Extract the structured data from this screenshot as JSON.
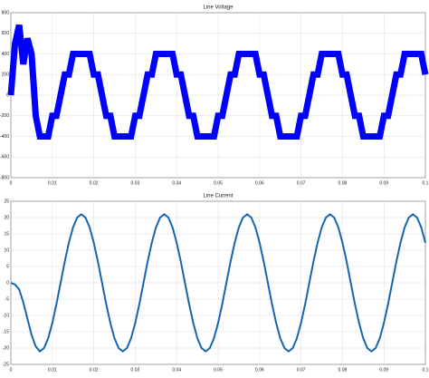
{
  "chart_data": [
    {
      "type": "line",
      "title": "Line Voltage",
      "x": [
        0,
        0.001,
        0.002,
        0.003,
        0.004,
        0.005,
        0.006,
        0.007,
        0.008,
        0.009,
        0.01,
        0.011,
        0.012,
        0.013,
        0.014,
        0.015,
        0.016,
        0.017,
        0.018,
        0.019,
        0.02,
        0.021,
        0.022,
        0.023,
        0.024,
        0.025,
        0.026,
        0.027,
        0.028,
        0.029,
        0.03,
        0.031,
        0.032,
        0.033,
        0.034,
        0.035,
        0.036,
        0.037,
        0.038,
        0.039,
        0.04,
        0.041,
        0.042,
        0.043,
        0.044,
        0.045,
        0.046,
        0.047,
        0.048,
        0.049,
        0.05,
        0.051,
        0.052,
        0.053,
        0.054,
        0.055,
        0.056,
        0.057,
        0.058,
        0.059,
        0.06,
        0.061,
        0.062,
        0.063,
        0.064,
        0.065,
        0.066,
        0.067,
        0.068,
        0.069,
        0.07,
        0.071,
        0.072,
        0.073,
        0.074,
        0.075,
        0.076,
        0.077,
        0.078,
        0.079,
        0.08,
        0.081,
        0.082,
        0.083,
        0.084,
        0.085,
        0.086,
        0.087,
        0.088,
        0.089,
        0.09,
        0.091,
        0.092,
        0.093,
        0.094,
        0.095,
        0.096,
        0.097,
        0.098,
        0.099,
        0.1
      ],
      "series": [
        {
          "color": "#0000ff",
          "values": [
            0,
            500,
            680,
            300,
            550,
            400,
            -200,
            -400,
            -400,
            -400,
            -200,
            -200,
            0,
            200,
            200,
            400,
            400,
            400,
            400,
            400,
            200,
            200,
            0,
            -200,
            -200,
            -400,
            -400,
            -400,
            -400,
            -400,
            -200,
            -200,
            0,
            200,
            200,
            400,
            400,
            400,
            400,
            400,
            200,
            200,
            0,
            -200,
            -200,
            -400,
            -400,
            -400,
            -400,
            -400,
            -200,
            -200,
            0,
            200,
            200,
            400,
            400,
            400,
            400,
            400,
            200,
            200,
            0,
            -200,
            -200,
            -400,
            -400,
            -400,
            -400,
            -400,
            -200,
            -200,
            0,
            200,
            200,
            400,
            400,
            400,
            400,
            400,
            200,
            200,
            0,
            -200,
            -200,
            -400,
            -400,
            -400,
            -400,
            -400,
            -200,
            -200,
            0,
            200,
            200,
            400,
            400,
            400,
            400,
            400,
            200
          ]
        }
      ],
      "xlim": [
        0,
        0.1
      ],
      "xticks": [
        0,
        0.01,
        0.02,
        0.03,
        0.04,
        0.05,
        0.06,
        0.07,
        0.08,
        0.09,
        0.1
      ],
      "ylim": [
        -800,
        800
      ],
      "yticks": [
        -800,
        -600,
        -400,
        -200,
        0,
        200,
        400,
        600,
        800
      ],
      "grid": true
    },
    {
      "type": "line",
      "title": "Line Current",
      "x": [
        0,
        0.001,
        0.002,
        0.003,
        0.004,
        0.005,
        0.006,
        0.007,
        0.008,
        0.009,
        0.01,
        0.011,
        0.012,
        0.013,
        0.014,
        0.015,
        0.016,
        0.017,
        0.018,
        0.019,
        0.02,
        0.021,
        0.022,
        0.023,
        0.024,
        0.025,
        0.026,
        0.027,
        0.028,
        0.029,
        0.03,
        0.031,
        0.032,
        0.033,
        0.034,
        0.035,
        0.036,
        0.037,
        0.038,
        0.039,
        0.04,
        0.041,
        0.042,
        0.043,
        0.044,
        0.045,
        0.046,
        0.047,
        0.048,
        0.049,
        0.05,
        0.051,
        0.052,
        0.053,
        0.054,
        0.055,
        0.056,
        0.057,
        0.058,
        0.059,
        0.06,
        0.061,
        0.062,
        0.063,
        0.064,
        0.065,
        0.066,
        0.067,
        0.068,
        0.069,
        0.07,
        0.071,
        0.072,
        0.073,
        0.074,
        0.075,
        0.076,
        0.077,
        0.078,
        0.079,
        0.08,
        0.081,
        0.082,
        0.083,
        0.084,
        0.085,
        0.086,
        0.087,
        0.088,
        0.089,
        0.09,
        0.091,
        0.092,
        0.093,
        0.094,
        0.095,
        0.096,
        0.097,
        0.098,
        0.099,
        0.1
      ],
      "series": [
        {
          "color": "#1565b0",
          "values": [
            0,
            -0.5,
            -2,
            -6,
            -11,
            -16,
            -19.5,
            -21,
            -20,
            -17,
            -12.3,
            -6.5,
            0,
            6.5,
            12.3,
            17,
            20,
            21,
            20,
            17,
            12.3,
            6.5,
            0,
            -6.5,
            -12.3,
            -17,
            -20,
            -21,
            -20,
            -17,
            -12.3,
            -6.5,
            0,
            6.5,
            12.3,
            17,
            20,
            21,
            20,
            17,
            12.3,
            6.5,
            0,
            -6.5,
            -12.3,
            -17,
            -20,
            -21,
            -20,
            -17,
            -12.3,
            -6.5,
            0,
            6.5,
            12.3,
            17,
            20,
            21,
            20,
            17,
            12.3,
            6.5,
            0,
            -6.5,
            -12.3,
            -17,
            -20,
            -21,
            -20,
            -17,
            -12.3,
            -6.5,
            0,
            6.5,
            12.3,
            17,
            20,
            21,
            20,
            17,
            12.3,
            6.5,
            0,
            -6.5,
            -12.3,
            -17,
            -20,
            -21,
            -20,
            -17,
            -12.3,
            -6.5,
            0,
            6.5,
            12.3,
            17,
            20,
            21,
            20,
            17,
            12.3
          ]
        }
      ],
      "xlim": [
        0,
        0.1
      ],
      "xticks": [
        0,
        0.01,
        0.02,
        0.03,
        0.04,
        0.05,
        0.06,
        0.07,
        0.08,
        0.09,
        0.1
      ],
      "ylim": [
        -25,
        25
      ],
      "yticks": [
        -25,
        -20,
        -15,
        -10,
        -5,
        0,
        5,
        10,
        15,
        20,
        25
      ],
      "grid": true
    }
  ]
}
